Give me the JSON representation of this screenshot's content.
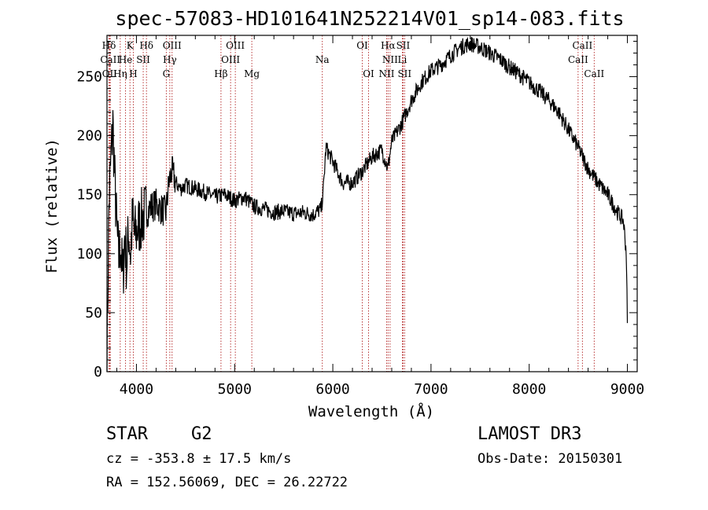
{
  "chart_data": {
    "type": "line",
    "title": "spec-57083-HD101641N252214V01_sp14-083.fits",
    "xlabel": "Wavelength (Å)",
    "ylabel": "Flux (relative)",
    "xlim": [
      3700,
      9100
    ],
    "ylim": [
      0,
      285
    ],
    "x_ticks": [
      4000,
      5000,
      6000,
      7000,
      8000,
      9000
    ],
    "y_ticks": [
      0,
      50,
      100,
      150,
      200,
      250
    ],
    "series": [
      {
        "name": "flux",
        "x": [
          3700,
          3720,
          3740,
          3760,
          3780,
          3800,
          3820,
          3840,
          3860,
          3880,
          3900,
          3920,
          3940,
          3960,
          3980,
          4000,
          4030,
          4060,
          4100,
          4150,
          4200,
          4250,
          4300,
          4330,
          4360,
          4400,
          4450,
          4500,
          4600,
          4700,
          4800,
          4900,
          5000,
          5100,
          5200,
          5300,
          5400,
          5500,
          5600,
          5700,
          5800,
          5880,
          5900,
          5930,
          6000,
          6100,
          6200,
          6300,
          6400,
          6500,
          6560,
          6600,
          6700,
          6800,
          6900,
          7000,
          7100,
          7200,
          7300,
          7400,
          7500,
          7600,
          7700,
          7800,
          7900,
          8000,
          8100,
          8200,
          8300,
          8400,
          8500,
          8600,
          8700,
          8800,
          8900,
          8960,
          8990,
          9000
        ],
        "y": [
          10,
          140,
          180,
          210,
          160,
          120,
          95,
          110,
          75,
          115,
          90,
          120,
          100,
          130,
          115,
          118,
          125,
          130,
          135,
          140,
          142,
          138,
          135,
          160,
          170,
          160,
          155,
          158,
          155,
          152,
          148,
          150,
          145,
          148,
          140,
          138,
          135,
          136,
          134,
          135,
          133,
          138,
          150,
          190,
          178,
          160,
          160,
          170,
          182,
          188,
          172,
          195,
          210,
          230,
          245,
          255,
          260,
          268,
          275,
          278,
          275,
          270,
          265,
          258,
          252,
          245,
          238,
          230,
          220,
          205,
          190,
          172,
          160,
          150,
          135,
          128,
          100,
          40
        ]
      }
    ],
    "lines": [
      {
        "name": "Hδ",
        "x": 3720,
        "row": 1
      },
      {
        "name": "CaII",
        "x": 3734,
        "row": 2
      },
      {
        "name": "OII",
        "x": 3727,
        "row": 3
      },
      {
        "name": "Hη",
        "x": 3835,
        "row": 3
      },
      {
        "name": "He",
        "x": 3889,
        "row": 2
      },
      {
        "name": "K",
        "x": 3934,
        "row": 1
      },
      {
        "name": "H",
        "x": 3968,
        "row": 3
      },
      {
        "name": "SII",
        "x": 4069,
        "row": 2
      },
      {
        "name": "Hδ",
        "x": 4102,
        "row": 1
      },
      {
        "name": "Hγ",
        "x": 4340,
        "row": 2
      },
      {
        "name": "G",
        "x": 4304,
        "row": 3
      },
      {
        "name": "OIII",
        "x": 4363,
        "row": 1
      },
      {
        "name": "Hβ",
        "x": 4861,
        "row": 3
      },
      {
        "name": "OIII",
        "x": 4959,
        "row": 2
      },
      {
        "name": "OIII",
        "x": 5007,
        "row": 1
      },
      {
        "name": "Mg",
        "x": 5175,
        "row": 3
      },
      {
        "name": "Na",
        "x": 5893,
        "row": 2
      },
      {
        "name": "OI",
        "x": 6300,
        "row": 1
      },
      {
        "name": "OI",
        "x": 6364,
        "row": 3
      },
      {
        "name": "NII",
        "x": 6548,
        "row": 3
      },
      {
        "name": "Hα",
        "x": 6563,
        "row": 1
      },
      {
        "name": "NII",
        "x": 6583,
        "row": 2
      },
      {
        "name": "SII",
        "x": 6716,
        "row": 1
      },
      {
        "name": "Li",
        "x": 6708,
        "row": 2
      },
      {
        "name": "SII",
        "x": 6731,
        "row": 3
      },
      {
        "name": "CaII",
        "x": 8498,
        "row": 2
      },
      {
        "name": "CaII",
        "x": 8542,
        "row": 1
      },
      {
        "name": "CaII",
        "x": 8662,
        "row": 3
      }
    ]
  },
  "info": {
    "object_class": "STAR",
    "subclass": "G2",
    "survey": "LAMOST DR3",
    "cz": "cz = -353.8 ± 17.5 km/s",
    "obs_date": "Obs-Date: 20150301",
    "coords": "RA = 152.56069, DEC =  26.22722"
  },
  "colors": {
    "line_marker": "#b22222",
    "spectrum": "#000000"
  }
}
